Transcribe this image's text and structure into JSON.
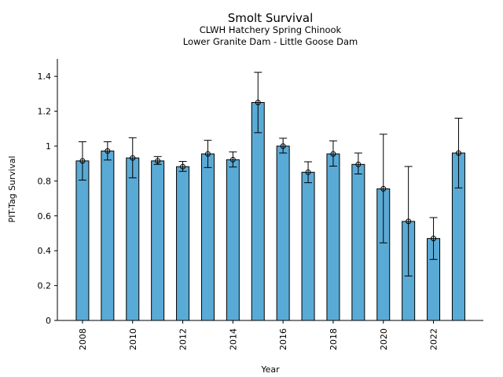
{
  "chart_data": {
    "type": "bar",
    "title": "Smolt Survival",
    "subtitle_lines": [
      "CLWH Hatchery Spring Chinook",
      "Lower Granite Dam - Little Goose Dam"
    ],
    "xlabel": "Year",
    "ylabel": "PIT-Tag Survival",
    "categories": [
      "2008",
      "2009",
      "2010",
      "2011",
      "2012",
      "2013",
      "2014",
      "2015",
      "2016",
      "2017",
      "2018",
      "2019",
      "2020",
      "2021",
      "2022",
      "2023"
    ],
    "values": [
      0.915,
      0.972,
      0.932,
      0.915,
      0.882,
      0.955,
      0.922,
      1.25,
      1.0,
      0.85,
      0.955,
      0.895,
      0.755,
      0.568,
      0.47,
      0.96
    ],
    "error_lower": [
      0.805,
      0.92,
      0.818,
      0.895,
      0.855,
      0.877,
      0.88,
      1.077,
      0.96,
      0.79,
      0.885,
      0.84,
      0.445,
      0.255,
      0.35,
      0.76
    ],
    "error_upper": [
      1.025,
      1.025,
      1.048,
      0.94,
      0.912,
      1.033,
      0.967,
      1.423,
      1.045,
      0.91,
      1.03,
      0.96,
      1.068,
      0.883,
      0.59,
      1.16
    ],
    "x_tick_labels": [
      "2008",
      "2010",
      "2012",
      "2014",
      "2016",
      "2018",
      "2020",
      "2022"
    ],
    "y_ticks": [
      0,
      0.2,
      0.4,
      0.6,
      0.8,
      1,
      1.2,
      1.4
    ],
    "y_tick_labels": [
      "0",
      "0.2",
      "0.4",
      "0.6",
      "0.8",
      "1",
      "1.2",
      "1.4"
    ],
    "ylim": [
      0,
      1.5
    ],
    "grid": false,
    "legend": "none",
    "colors": {
      "bar_fill": "#5aaad6",
      "bar_edge": "#000000",
      "error_bar": "#000000",
      "axis": "#000000"
    }
  }
}
